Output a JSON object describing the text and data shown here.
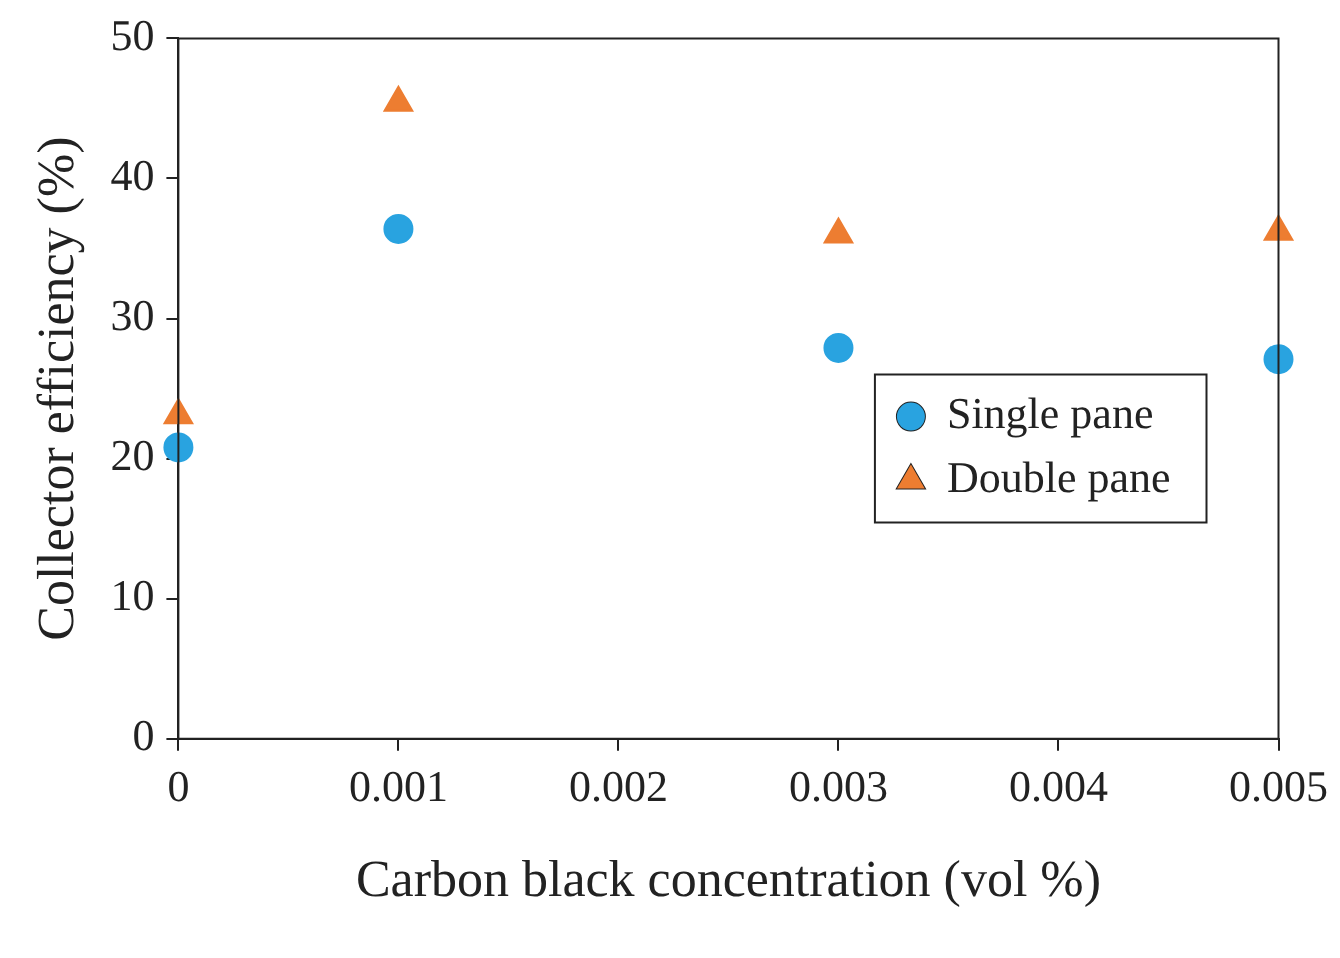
{
  "chart_data": {
    "type": "scatter",
    "xlabel": "Carbon black concentration (vol %)",
    "ylabel": "Collector efficiency (%)",
    "x": [
      0,
      0.001,
      0.003,
      0.005
    ],
    "series": [
      {
        "name": "Single pane",
        "color": "#29a3e0",
        "marker": "circle",
        "values": [
          20.8,
          36.4,
          27.9,
          27.1
        ]
      },
      {
        "name": "Double pane",
        "color": "#ed7d31",
        "marker": "triangle",
        "values": [
          23.1,
          45.4,
          36.0,
          36.2
        ]
      }
    ],
    "xlim": [
      0,
      0.005
    ],
    "xticks": [
      0,
      0.001,
      0.002,
      0.003,
      0.004,
      0.005
    ],
    "ylim": [
      0,
      50
    ],
    "yticks": [
      0,
      10,
      20,
      30,
      40,
      50
    ],
    "grid": false,
    "legend": "right"
  }
}
